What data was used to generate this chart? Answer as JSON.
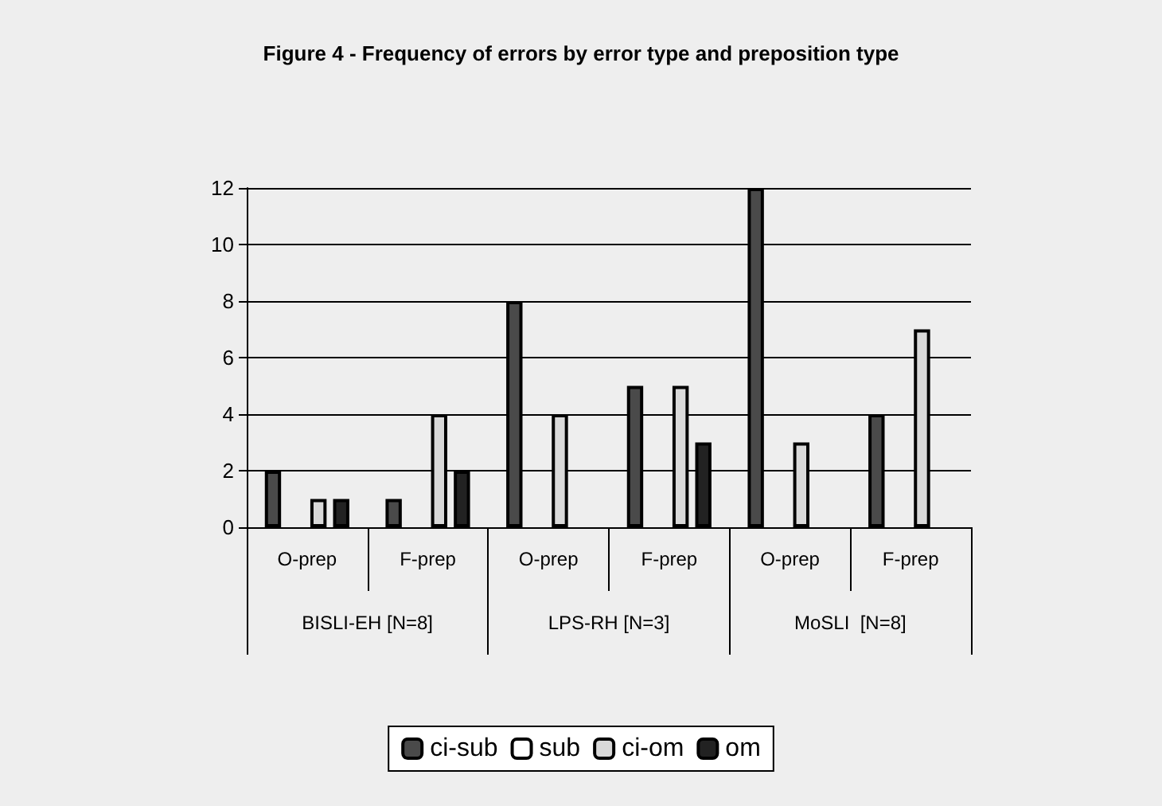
{
  "chart_data": {
    "type": "bar",
    "title": "Figure 4 - Frequency of errors by error type and preposition type",
    "categories": [
      "O-prep",
      "F-prep",
      "O-prep",
      "F-prep",
      "O-prep",
      "F-prep"
    ],
    "annotations": [
      "BISLI-EH [N=8]",
      "LPS-RH [N=3]",
      "MoSLI  [N=8]"
    ],
    "series": [
      {
        "name": "ci-sub",
        "color": "#4a4a4a",
        "values": [
          2,
          1,
          8,
          5,
          12,
          4
        ]
      },
      {
        "name": "sub",
        "color": "#ffffff",
        "values": [
          0,
          0,
          0,
          0,
          null,
          null
        ]
      },
      {
        "name": "ci-om",
        "color": "#d9d9d9",
        "values": [
          1,
          4,
          4,
          5,
          3,
          7
        ]
      },
      {
        "name": "om",
        "color": "#222222",
        "values": [
          1,
          2,
          0,
          3,
          null,
          null
        ]
      }
    ],
    "ylim": [
      0,
      12
    ],
    "yticks": [
      0,
      2,
      4,
      6,
      8,
      10,
      12
    ],
    "grid": "y",
    "legend": "bottom"
  }
}
